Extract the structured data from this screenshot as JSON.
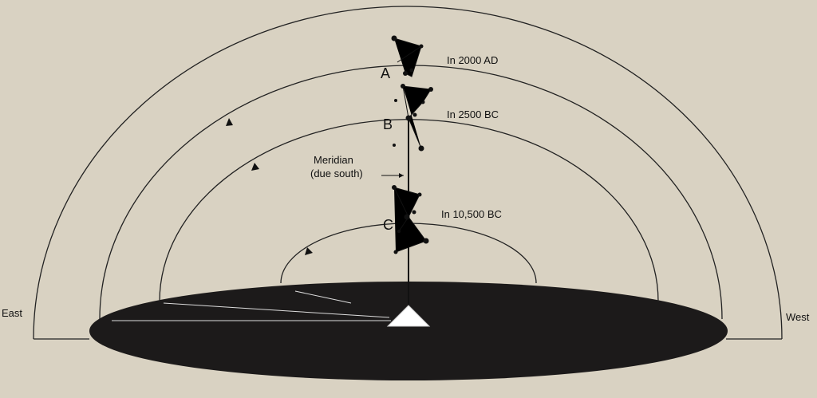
{
  "labels": {
    "east": "East",
    "west": "West",
    "a": "A",
    "b": "B",
    "c": "C",
    "a_note": "In 2000 AD",
    "b_note": "In 2500 BC",
    "c_note": "In 10,500 BC",
    "meridian": [
      "Meridian",
      "(due south)"
    ]
  }
}
